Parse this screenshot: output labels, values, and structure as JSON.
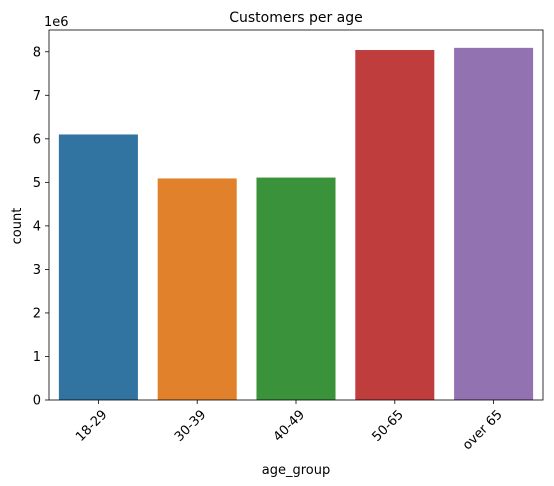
{
  "chart_data": {
    "type": "bar",
    "title": "Customers per age",
    "xlabel": "age_group",
    "ylabel": "count",
    "y_offset_label": "1e6",
    "categories": [
      "18-29",
      "30-39",
      "40-49",
      "50-65",
      "over 65"
    ],
    "values": [
      6100000,
      5090000,
      5110000,
      8040000,
      8090000
    ],
    "colors": [
      "#3274a1",
      "#e1812c",
      "#3a923a",
      "#c03d3e",
      "#9372b2"
    ],
    "ylim": [
      0,
      8500000
    ],
    "y_ticks": [
      0,
      1,
      2,
      3,
      4,
      5,
      6,
      7,
      8
    ],
    "y_tick_scale": 1000000,
    "grid": false,
    "x_tick_rotation": 45
  }
}
